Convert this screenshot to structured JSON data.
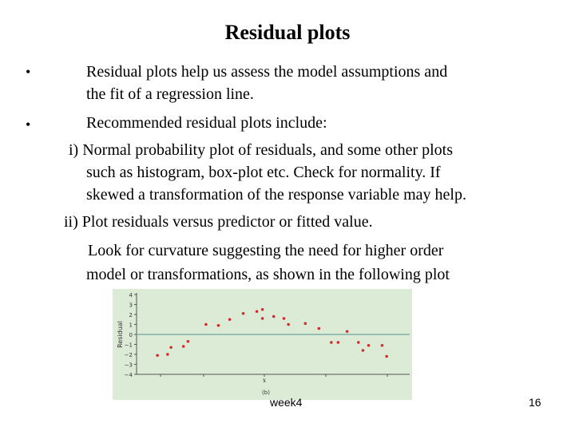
{
  "slide": {
    "title": "Residual plots",
    "bullet_symbol": "•",
    "lines": [
      "Residual plots help us assess the model assumptions and",
      "the fit of a regression line.",
      "Recommended residual plots include:",
      "i) Normal probability plot of residuals, and some other plots",
      "such as histogram, box-plot etc. Check for normality. If",
      "skewed a transformation of the response variable may help.",
      "ii) Plot residuals versus predictor or fitted value.",
      "Look for curvature suggesting the need for higher order",
      "model or transformations, as shown in the following plot"
    ],
    "footer_center": "week4",
    "page_number": "16"
  },
  "chart_data": {
    "type": "scatter",
    "ylabel": "Residual",
    "xlabel": "x",
    "panel_label": "(b)",
    "ylim": [
      -4,
      4
    ],
    "yticks": [
      "4",
      "3",
      "2",
      "1",
      "0",
      "−1",
      "−2",
      "−3",
      "−4"
    ],
    "reference_line_y": 0,
    "x": [
      1.0,
      1.9,
      2.2,
      3.3,
      3.7,
      5.3,
      6.4,
      7.4,
      8.6,
      9.8,
      10.3,
      10.3,
      11.3,
      12.2,
      12.6,
      14.1,
      15.3,
      16.4,
      17.0,
      17.8,
      18.8,
      19.2,
      19.7,
      20.9,
      21.3
    ],
    "y": [
      -2.1,
      -2.0,
      -1.3,
      -1.2,
      -0.7,
      1.0,
      0.9,
      1.5,
      2.1,
      2.3,
      2.5,
      1.6,
      1.8,
      1.6,
      1.0,
      1.1,
      0.6,
      -0.8,
      -0.8,
      0.3,
      -0.8,
      -1.6,
      -1.1,
      -1.1,
      -2.2
    ],
    "point_color": "#d62a2a",
    "line_color": "#7fb0a8",
    "axis_color": "#555555"
  }
}
